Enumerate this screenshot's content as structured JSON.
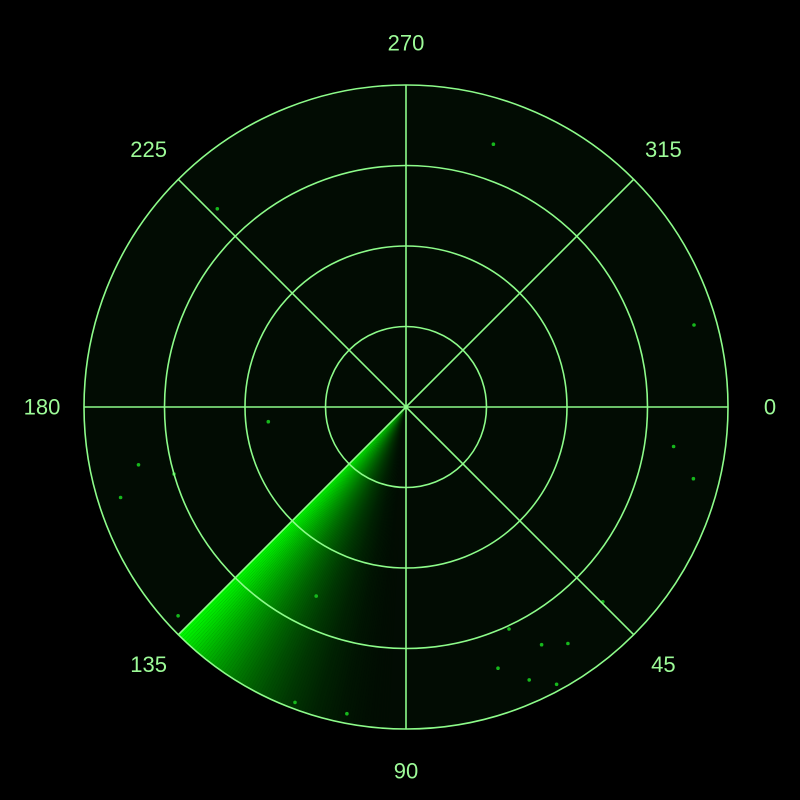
{
  "colors": {
    "background": "#000000",
    "disc": "#020c03",
    "grid": "#8dfc8a",
    "sweep": "#00ff00",
    "label": "#9dfb98",
    "blip": "#16b81c"
  },
  "radar": {
    "ring_count": 4,
    "spoke_angles_deg": [
      0,
      45,
      90,
      135,
      180,
      225,
      270,
      315
    ],
    "angle_labels": [
      {
        "deg": 0,
        "text": "0"
      },
      {
        "deg": 45,
        "text": "45"
      },
      {
        "deg": 90,
        "text": "90"
      },
      {
        "deg": 135,
        "text": "135"
      },
      {
        "deg": 180,
        "text": "180"
      },
      {
        "deg": 225,
        "text": "225"
      },
      {
        "deg": 270,
        "text": "270"
      },
      {
        "deg": 315,
        "text": "315"
      }
    ],
    "sweep": {
      "leading_edge_deg": 135,
      "trail_length_deg": 45
    },
    "blips": [
      {
        "bearing_deg": 288.4,
        "range": 0.86
      },
      {
        "bearing_deg": 226.4,
        "range": 0.85
      },
      {
        "bearing_deg": 344.1,
        "range": 0.93
      },
      {
        "bearing_deg": 8.4,
        "range": 0.84
      },
      {
        "bearing_deg": 14.0,
        "range": 0.92
      },
      {
        "bearing_deg": 163.9,
        "range": 0.75
      },
      {
        "bearing_deg": 167.8,
        "range": 0.85
      },
      {
        "bearing_deg": 173.9,
        "range": 0.43
      },
      {
        "bearing_deg": 162.4,
        "range": 0.93
      },
      {
        "bearing_deg": 137.5,
        "range": 0.96
      },
      {
        "bearing_deg": 115.4,
        "range": 0.65
      },
      {
        "bearing_deg": 110.6,
        "range": 0.98
      },
      {
        "bearing_deg": 100.9,
        "range": 0.97
      },
      {
        "bearing_deg": 65.1,
        "range": 0.76
      },
      {
        "bearing_deg": 60.3,
        "range": 0.85
      },
      {
        "bearing_deg": 55.6,
        "range": 0.89
      },
      {
        "bearing_deg": 44.7,
        "range": 0.86
      },
      {
        "bearing_deg": 70.6,
        "range": 0.86
      },
      {
        "bearing_deg": 65.7,
        "range": 0.93
      },
      {
        "bearing_deg": 61.5,
        "range": 0.98
      }
    ]
  }
}
